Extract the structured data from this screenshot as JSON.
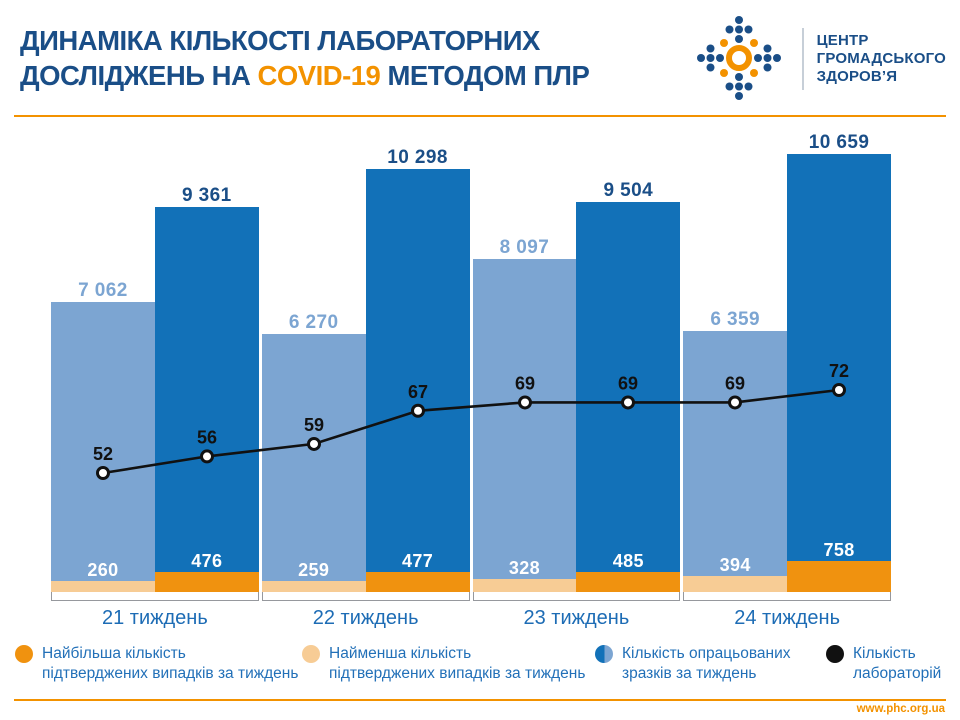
{
  "header": {
    "title_line1": "ДИНАМІКА КІЛЬКОСТІ ЛАБОРАТОРНИХ",
    "title_line2_prefix": "ДОСЛІДЖЕНЬ НА ",
    "title_highlight": "COVID-19",
    "title_line2_suffix": " МЕТОДОМ ПЛР",
    "logo": {
      "lines": [
        "ЦЕНТР",
        "ГРОМАДСЬКОГО",
        "ЗДОРОВ’Я"
      ]
    }
  },
  "chart_data": {
    "type": "bar",
    "title": "Динаміка кількості лабораторних досліджень на COVID-19 методом ПЛР",
    "categories": [
      "21 тиждень",
      "22 тиждень",
      "23 тиждень",
      "24 тиждень"
    ],
    "ylim": [
      0,
      11000
    ],
    "grid": false,
    "legend_position": "bottom",
    "bar_series": [
      {
        "name": "Кількість опрацьованих зразків за тиждень (світлий стовпчик)",
        "color_key": "light_blue",
        "values": [
          7062,
          6270,
          8097,
          6359
        ],
        "labels": [
          "7 062",
          "6 270",
          "8 097",
          "6 359"
        ],
        "strip": {
          "name": "Найменша кількість підтверджених випадків за тиждень",
          "color_key": "peach",
          "values": [
            260,
            259,
            328,
            394
          ],
          "labels": [
            "260",
            "259",
            "328",
            "394"
          ]
        }
      },
      {
        "name": "Кількість опрацьованих зразків за тиждень (темний стовпчик)",
        "color_key": "dark_blue",
        "values": [
          9361,
          10298,
          9504,
          10659
        ],
        "labels": [
          "9 361",
          "10 298",
          "9 504",
          "10 659"
        ],
        "strip": {
          "name": "Найбільша кількість підтверджених випадків за тиждень",
          "color_key": "orange",
          "values": [
            476,
            477,
            485,
            758
          ],
          "labels": [
            "476",
            "477",
            "485",
            "758"
          ]
        }
      }
    ],
    "line_series": {
      "name": "Кількість лабораторій",
      "values": [
        52,
        56,
        59,
        67,
        69,
        69,
        69,
        72
      ],
      "labels": [
        "52",
        "56",
        "59",
        "67",
        "69",
        "69",
        "69",
        "72"
      ]
    }
  },
  "legend": {
    "items": [
      {
        "icon": "max-confirmed-dot-icon",
        "color_key": "orange",
        "lines": [
          "Найбільша кількість",
          "підтверджених випадків за тиждень"
        ]
      },
      {
        "icon": "min-confirmed-dot-icon",
        "color_key": "peach",
        "lines": [
          "Найменша кількість",
          "підтверджених випадків за тиждень"
        ]
      },
      {
        "icon": "processed-samples-dot-icon",
        "color_key": "split",
        "lines": [
          "Кількість опрацьованих",
          "зразків за тиждень"
        ]
      },
      {
        "icon": "labs-dot-icon",
        "color_key": "black",
        "lines": [
          "Кількість",
          "лабораторій"
        ]
      }
    ]
  },
  "footer": {
    "url": "www.phc.org.ua"
  },
  "colors": {
    "dark_blue": "#1271B8",
    "light_blue": "#7CA5D2",
    "orange": "#F0920F",
    "peach": "#F7CC95",
    "black": "#111111",
    "brand_orange": "#F39200",
    "title_blue": "#1A4E87",
    "week_label_blue": "#1D6CB5",
    "legend_text_blue": "#2270B8",
    "axis_gray": "#96989D"
  }
}
